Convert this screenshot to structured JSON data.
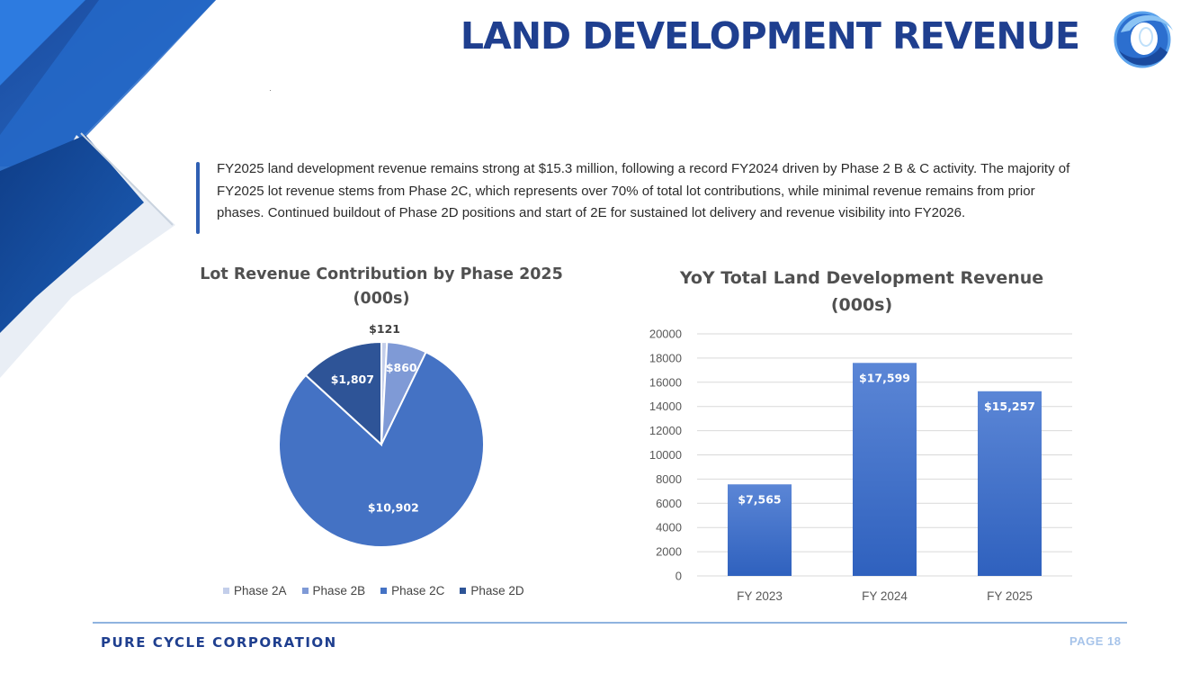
{
  "header": {
    "title": "LAND DEVELOPMENT REVENUE"
  },
  "summary": {
    "text": "FY2025 land development revenue remains strong at $15.3 million, following a record FY2024 driven by Phase 2 B & C activity. The majority of FY2025 lot revenue stems from Phase 2C, which represents over 70% of total lot contributions, while minimal revenue remains from prior phases. Continued buildout of Phase 2D positions and start of 2E for sustained lot delivery and revenue visibility into FY2026."
  },
  "colors": {
    "brand": "#1f3f8f",
    "phase_2a": "#c3ceea",
    "phase_2b": "#7f9ad6",
    "phase_2c": "#4472c4",
    "phase_2d": "#2e5497",
    "bar_top": "#5b86d6",
    "bar_bottom": "#2f61be"
  },
  "chart_data": [
    {
      "type": "pie",
      "title": "Lot Revenue Contribution by Phase 2025 (000s)",
      "title_lines": [
        "Lot Revenue Contribution by Phase 2025",
        "(000s)"
      ],
      "categories": [
        "Phase 2A",
        "Phase 2B",
        "Phase 2C",
        "Phase 2D"
      ],
      "values": [
        121,
        860,
        10902,
        1807
      ],
      "data_labels": [
        "$121",
        "$860",
        "$10,902",
        "$1,807"
      ],
      "legend_position": "bottom"
    },
    {
      "type": "bar",
      "title": "YoY Total Land Development Revenue (000s)",
      "title_lines": [
        "YoY Total Land Development Revenue",
        "(000s)"
      ],
      "categories": [
        "FY 2023",
        "FY 2024",
        "FY 2025"
      ],
      "values": [
        7565,
        17599,
        15257
      ],
      "data_labels": [
        "$7,565",
        "$17,599",
        "$15,257"
      ],
      "ylim": [
        0,
        20000
      ],
      "yticks": [
        "0",
        "2000",
        "4000",
        "6000",
        "8000",
        "10000",
        "12000",
        "14000",
        "16000",
        "18000",
        "20000"
      ],
      "grid": true,
      "xlabel": "",
      "ylabel": ""
    }
  ],
  "footer": {
    "company": "PURE CYCLE CORPORATION",
    "page": "PAGE 18"
  }
}
